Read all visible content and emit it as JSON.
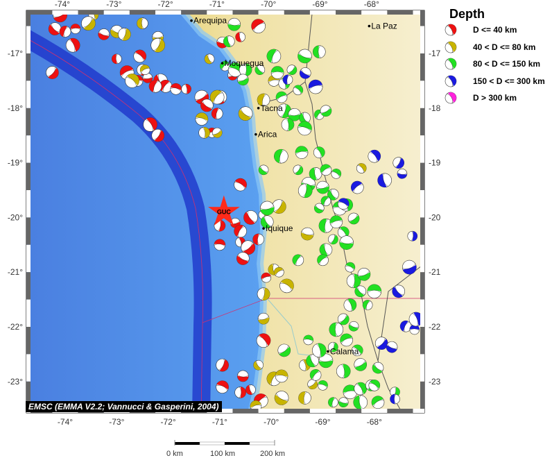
{
  "map": {
    "lon_ticks": [
      -74,
      -73,
      -72,
      -71,
      -70,
      -69,
      -68
    ],
    "lat_ticks": [
      -17,
      -18,
      -19,
      -20,
      -21,
      -22,
      -23
    ],
    "extent": {
      "lon": [
        -74.75,
        -67.05
      ],
      "lat": [
        -16.2,
        -23.6
      ]
    },
    "colors": {
      "ocean": "#4a8ee8",
      "trench": "#1a2fc8",
      "coast_land": "#d9bb3e",
      "inland": "#f3ebc4"
    },
    "station": {
      "label": "GUC",
      "lon": -70.92,
      "lat": -19.9,
      "icon": "red-star-icon",
      "color": "#ff2a1a"
    },
    "cities": [
      {
        "name": "Arequipa",
        "lon": -71.55,
        "lat": -16.4
      },
      {
        "name": "La Paz",
        "lon": -68.1,
        "lat": -16.5
      },
      {
        "name": "Moquegua",
        "lon": -70.95,
        "lat": -17.18
      },
      {
        "name": "Tacna",
        "lon": -70.25,
        "lat": -18.0
      },
      {
        "name": "Arica",
        "lon": -70.3,
        "lat": -18.48
      },
      {
        "name": "Iquique",
        "lon": -70.15,
        "lat": -20.2
      },
      {
        "name": "Calama",
        "lon": -68.9,
        "lat": -22.45
      }
    ],
    "credit": "EMSC (EMMA V2.2; Vannucci & Gasperini, 2004)"
  },
  "legend": {
    "title": "Depth",
    "items": [
      {
        "label": "D <= 40 km",
        "color": "#ee1111"
      },
      {
        "label": "40 < D <= 80 km",
        "color": "#c8b400"
      },
      {
        "label": "80 < D <= 150 km",
        "color": "#22e022"
      },
      {
        "label": "150 < D <= 300 km",
        "color": "#1a1ae0"
      },
      {
        "label": "D > 300 km",
        "color": "#ff22dd"
      }
    ]
  },
  "scale_bar": {
    "labels": [
      "0 km",
      "100 km",
      "200 km"
    ]
  },
  "events": {
    "0": [
      [
        -74.1,
        -16.3
      ],
      [
        -74.2,
        -16.55
      ],
      [
        -74.0,
        -16.6
      ],
      [
        -73.8,
        -16.55
      ],
      [
        -73.85,
        -16.85
      ],
      [
        -74.25,
        -17.35
      ],
      [
        -73.25,
        -16.65
      ],
      [
        -73.0,
        -17.1
      ],
      [
        -72.8,
        -17.35
      ],
      [
        -72.55,
        -17.05
      ],
      [
        -72.5,
        -17.3
      ],
      [
        -72.4,
        -17.45
      ],
      [
        -72.15,
        -17.5
      ],
      [
        -72.05,
        -17.6
      ],
      [
        -71.85,
        -17.65
      ],
      [
        -71.65,
        -17.65
      ],
      [
        -71.35,
        -17.8
      ],
      [
        -71.25,
        -17.95
      ],
      [
        -71.05,
        -18.1
      ],
      [
        -71.15,
        -18.45
      ],
      [
        -72.35,
        -18.3
      ],
      [
        -72.2,
        -18.5
      ],
      [
        -70.95,
        -16.8
      ],
      [
        -70.6,
        -16.7
      ],
      [
        -70.25,
        -16.5
      ],
      [
        -70.6,
        -19.4
      ],
      [
        -71.0,
        -20.15
      ],
      [
        -70.7,
        -20.1
      ],
      [
        -70.4,
        -20.0
      ],
      [
        -70.6,
        -20.25
      ],
      [
        -71.0,
        -20.5
      ],
      [
        -70.6,
        -20.45
      ],
      [
        -70.45,
        -20.55
      ],
      [
        -70.55,
        -20.75
      ],
      [
        -70.25,
        -20.4
      ],
      [
        -70.1,
        -21.1
      ],
      [
        -70.15,
        -22.25
      ],
      [
        -70.95,
        -22.7
      ],
      [
        -70.55,
        -22.9
      ],
      [
        -70.4,
        -23.15
      ],
      [
        -70.2,
        -23.35
      ],
      [
        -70.95,
        -23.1
      ],
      [
        -70.6,
        -23.2
      ],
      [
        -70.75,
        -17.4
      ],
      [
        -71.0,
        -17.8
      ],
      [
        -72.25,
        -17.6
      ],
      [
        -72.6,
        -17.5
      ]
    ],
    "1": [
      [
        -73.45,
        -16.3
      ],
      [
        -73.55,
        -16.45
      ],
      [
        -73.0,
        -16.6
      ],
      [
        -72.5,
        -16.45
      ],
      [
        -72.45,
        -17.3
      ],
      [
        -72.7,
        -17.5
      ],
      [
        -72.85,
        -16.65
      ],
      [
        -72.2,
        -16.7
      ],
      [
        -71.2,
        -17.1
      ],
      [
        -71.05,
        -17.8
      ],
      [
        -71.35,
        -18.2
      ],
      [
        -71.3,
        -18.45
      ],
      [
        -71.05,
        -18.45
      ],
      [
        -70.5,
        -18.1
      ],
      [
        -70.15,
        -17.85
      ],
      [
        -69.95,
        -17.5
      ],
      [
        -70.15,
        -19.95
      ],
      [
        -69.85,
        -19.8
      ],
      [
        -69.3,
        -20.3
      ],
      [
        -69.95,
        -20.95
      ],
      [
        -69.85,
        -21.0
      ],
      [
        -69.7,
        -21.25
      ],
      [
        -70.15,
        -21.4
      ],
      [
        -70.15,
        -21.85
      ],
      [
        -70.25,
        -22.7
      ],
      [
        -69.95,
        -22.95
      ],
      [
        -69.8,
        -22.9
      ],
      [
        -69.35,
        -22.7
      ],
      [
        -69.2,
        -23.05
      ],
      [
        -69.8,
        -23.3
      ],
      [
        -69.35,
        -23.3
      ],
      [
        -70.3,
        -23.45
      ],
      [
        -68.25,
        -19.1
      ],
      [
        -72.2,
        -16.85
      ]
    ],
    "2": [
      [
        -70.72,
        -16.47
      ],
      [
        -70.82,
        -16.78
      ],
      [
        -70.9,
        -17.23
      ],
      [
        -70.7,
        -17.3
      ],
      [
        -70.5,
        -17.3
      ],
      [
        -70.55,
        -17.48
      ],
      [
        -70.22,
        -17.3
      ],
      [
        -69.95,
        -17.05
      ],
      [
        -69.88,
        -17.35
      ],
      [
        -69.75,
        -17.55
      ],
      [
        -69.6,
        -17.3
      ],
      [
        -69.35,
        -17.05
      ],
      [
        -69.07,
        -16.97
      ],
      [
        -69.8,
        -17.8
      ],
      [
        -69.48,
        -17.67
      ],
      [
        -69.75,
        -18.05
      ],
      [
        -69.55,
        -18.12
      ],
      [
        -69.35,
        -18.18
      ],
      [
        -69.07,
        -18.12
      ],
      [
        -69.35,
        -18.37
      ],
      [
        -69.68,
        -18.3
      ],
      [
        -68.94,
        -18.05
      ],
      [
        -70.15,
        -19.13
      ],
      [
        -69.81,
        -18.88
      ],
      [
        -69.41,
        -18.81
      ],
      [
        -69.07,
        -18.81
      ],
      [
        -69.48,
        -19.13
      ],
      [
        -69.28,
        -19.39
      ],
      [
        -69.14,
        -19.2
      ],
      [
        -68.94,
        -19.13
      ],
      [
        -68.74,
        -19.2
      ],
      [
        -69.34,
        -19.51
      ],
      [
        -69.0,
        -19.45
      ],
      [
        -68.8,
        -19.58
      ],
      [
        -68.94,
        -19.7
      ],
      [
        -68.67,
        -19.83
      ],
      [
        -68.54,
        -19.77
      ],
      [
        -68.4,
        -20.02
      ],
      [
        -69.07,
        -19.83
      ],
      [
        -68.94,
        -20.15
      ],
      [
        -68.74,
        -20.08
      ],
      [
        -68.6,
        -20.27
      ],
      [
        -68.8,
        -20.4
      ],
      [
        -68.54,
        -20.46
      ],
      [
        -68.94,
        -20.59
      ],
      [
        -69.0,
        -20.78
      ],
      [
        -68.47,
        -20.91
      ],
      [
        -68.4,
        -21.16
      ],
      [
        -68.2,
        -21.04
      ],
      [
        -68.27,
        -21.35
      ],
      [
        -68.13,
        -21.6
      ],
      [
        -68.0,
        -21.35
      ],
      [
        -68.47,
        -21.6
      ],
      [
        -68.6,
        -21.86
      ],
      [
        -68.4,
        -21.99
      ],
      [
        -68.74,
        -22.05
      ],
      [
        -68.54,
        -22.24
      ],
      [
        -68.33,
        -22.43
      ],
      [
        -68.8,
        -22.37
      ],
      [
        -68.94,
        -22.62
      ],
      [
        -69.2,
        -22.62
      ],
      [
        -69.14,
        -22.88
      ],
      [
        -69.0,
        -23.07
      ],
      [
        -68.6,
        -22.81
      ],
      [
        -68.27,
        -22.69
      ],
      [
        -67.93,
        -22.75
      ],
      [
        -68.8,
        -23.38
      ],
      [
        -68.47,
        -23.19
      ],
      [
        -68.27,
        -23.13
      ],
      [
        -68.06,
        -23.07
      ],
      [
        -68.6,
        -23.38
      ],
      [
        -68.27,
        -23.38
      ],
      [
        -67.93,
        -23.38
      ],
      [
        -68.0,
        -23.07
      ],
      [
        -67.6,
        -23.19
      ],
      [
        -70.08,
        -19.83
      ],
      [
        -70.08,
        -20.08
      ],
      [
        -69.48,
        -20.78
      ],
      [
        -69.28,
        -22.24
      ],
      [
        -69.07,
        -22.43
      ],
      [
        -69.75,
        -22.43
      ]
    ],
    "3": [
      [
        -69.34,
        -17.36
      ],
      [
        -69.68,
        -17.48
      ],
      [
        -69.14,
        -17.61
      ],
      [
        -68.0,
        -18.88
      ],
      [
        -67.53,
        -19.0
      ],
      [
        -67.46,
        -19.2
      ],
      [
        -67.8,
        -19.32
      ],
      [
        -68.33,
        -19.45
      ],
      [
        -68.6,
        -19.75
      ],
      [
        -67.26,
        -20.34
      ],
      [
        -67.32,
        -20.91
      ],
      [
        -67.53,
        -21.35
      ],
      [
        -67.39,
        -21.99
      ],
      [
        -67.22,
        -22.05
      ],
      [
        -67.19,
        -21.86
      ],
      [
        -67.86,
        -22.3
      ],
      [
        -67.66,
        -22.37
      ],
      [
        -67.6,
        -23.32
      ]
    ]
  }
}
